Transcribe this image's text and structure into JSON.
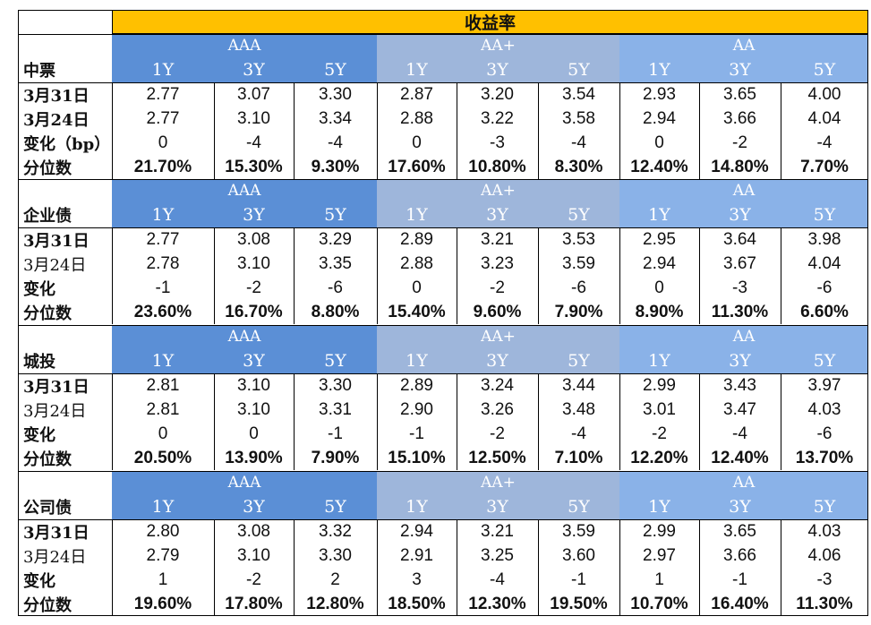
{
  "title": "收益率",
  "grades": [
    "AAA",
    "AA+",
    "AA"
  ],
  "tenors": [
    "1Y",
    "3Y",
    "5Y"
  ],
  "colors": {
    "title_bg": "#ffc000",
    "aaa_bg": "#5b8fd6",
    "aaplus_bg": "#9eb6db",
    "aa_bg": "#8ab2e8"
  },
  "sections": [
    {
      "name": "中票",
      "rows": [
        {
          "label": "3月31日",
          "bold": true,
          "kind": "val",
          "values": [
            "2.77",
            "3.07",
            "3.30",
            "2.87",
            "3.20",
            "3.54",
            "2.93",
            "3.65",
            "4.00"
          ]
        },
        {
          "label": "3月24日",
          "bold": true,
          "kind": "val",
          "values": [
            "2.77",
            "3.10",
            "3.34",
            "2.88",
            "3.22",
            "3.58",
            "2.94",
            "3.66",
            "4.04"
          ]
        },
        {
          "label": "变化（bp）",
          "bold": true,
          "kind": "val",
          "values": [
            "0",
            "-4",
            "-4",
            "0",
            "-3",
            "-4",
            "0",
            "-2",
            "-4"
          ]
        },
        {
          "label": "分位数",
          "bold": true,
          "kind": "pct",
          "values": [
            "21.70%",
            "15.30%",
            "9.30%",
            "17.60%",
            "10.80%",
            "8.30%",
            "12.40%",
            "14.80%",
            "7.70%"
          ]
        }
      ]
    },
    {
      "name": "企业债",
      "rows": [
        {
          "label": "3月31日",
          "bold": true,
          "kind": "val",
          "values": [
            "2.77",
            "3.08",
            "3.29",
            "2.89",
            "3.21",
            "3.53",
            "2.95",
            "3.64",
            "3.98"
          ]
        },
        {
          "label": "3月24日",
          "bold": false,
          "kind": "val",
          "values": [
            "2.78",
            "3.10",
            "3.35",
            "2.88",
            "3.23",
            "3.59",
            "2.94",
            "3.67",
            "4.04"
          ]
        },
        {
          "label": "变化",
          "bold": true,
          "kind": "val",
          "values": [
            "-1",
            "-2",
            "-6",
            "0",
            "-2",
            "-6",
            "0",
            "-3",
            "-6"
          ]
        },
        {
          "label": "分位数",
          "bold": true,
          "kind": "pct",
          "values": [
            "23.60%",
            "16.70%",
            "8.80%",
            "15.40%",
            "9.60%",
            "7.90%",
            "8.90%",
            "11.30%",
            "6.60%"
          ]
        }
      ]
    },
    {
      "name": "城投",
      "rows": [
        {
          "label": "3月31日",
          "bold": true,
          "kind": "val",
          "values": [
            "2.81",
            "3.10",
            "3.30",
            "2.89",
            "3.24",
            "3.44",
            "2.99",
            "3.43",
            "3.97"
          ]
        },
        {
          "label": "3月24日",
          "bold": false,
          "kind": "val",
          "values": [
            "2.81",
            "3.10",
            "3.31",
            "2.90",
            "3.26",
            "3.48",
            "3.01",
            "3.47",
            "4.03"
          ]
        },
        {
          "label": "变化",
          "bold": true,
          "kind": "val",
          "values": [
            "0",
            "0",
            "-1",
            "-1",
            "-2",
            "-4",
            "-2",
            "-4",
            "-6"
          ]
        },
        {
          "label": "分位数",
          "bold": true,
          "kind": "pct",
          "values": [
            "20.50%",
            "13.90%",
            "7.90%",
            "15.10%",
            "12.50%",
            "7.10%",
            "12.20%",
            "12.40%",
            "13.70%"
          ]
        }
      ]
    },
    {
      "name": "公司债",
      "rows": [
        {
          "label": "3月31日",
          "bold": true,
          "kind": "val",
          "values": [
            "2.80",
            "3.08",
            "3.32",
            "2.94",
            "3.21",
            "3.59",
            "2.99",
            "3.65",
            "4.03"
          ]
        },
        {
          "label": "3月24日",
          "bold": false,
          "kind": "val",
          "values": [
            "2.79",
            "3.10",
            "3.30",
            "2.91",
            "3.25",
            "3.60",
            "2.97",
            "3.66",
            "4.06"
          ]
        },
        {
          "label": "变化",
          "bold": true,
          "kind": "val",
          "values": [
            "1",
            "-2",
            "2",
            "3",
            "-4",
            "-1",
            "1",
            "-1",
            "-3"
          ]
        },
        {
          "label": "分位数",
          "bold": true,
          "kind": "pct",
          "values": [
            "19.60%",
            "17.80%",
            "12.80%",
            "18.50%",
            "12.30%",
            "19.50%",
            "10.70%",
            "16.40%",
            "11.30%"
          ]
        }
      ]
    }
  ]
}
